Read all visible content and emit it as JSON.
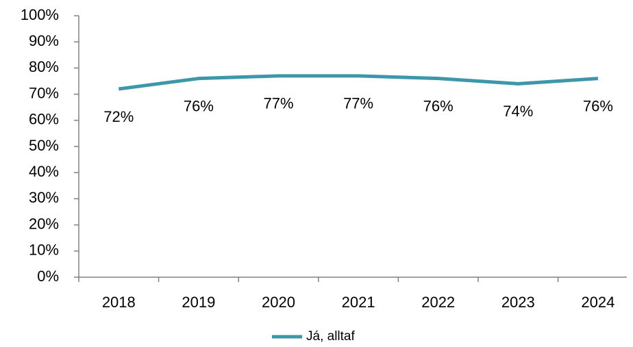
{
  "chart_data": {
    "type": "line",
    "categories": [
      "2018",
      "2019",
      "2020",
      "2021",
      "2022",
      "2023",
      "2024"
    ],
    "series": [
      {
        "name": "Já, alltaf",
        "color": "#3d97aa",
        "values": [
          72,
          76,
          77,
          77,
          76,
          74,
          76
        ],
        "value_labels": [
          "72%",
          "76%",
          "77%",
          "77%",
          "76%",
          "74%",
          "76%"
        ]
      }
    ],
    "ylim": [
      0,
      100
    ],
    "yticks": [
      {
        "value": 0,
        "label": "0%"
      },
      {
        "value": 10,
        "label": "10%"
      },
      {
        "value": 20,
        "label": "20%"
      },
      {
        "value": 30,
        "label": "30%"
      },
      {
        "value": 40,
        "label": "40%"
      },
      {
        "value": 50,
        "label": "50%"
      },
      {
        "value": 60,
        "label": "60%"
      },
      {
        "value": 70,
        "label": "70%"
      },
      {
        "value": 80,
        "label": "80%"
      },
      {
        "value": 90,
        "label": "90%"
      },
      {
        "value": 100,
        "label": "100%"
      }
    ],
    "grid": false,
    "legend": "bottom"
  }
}
